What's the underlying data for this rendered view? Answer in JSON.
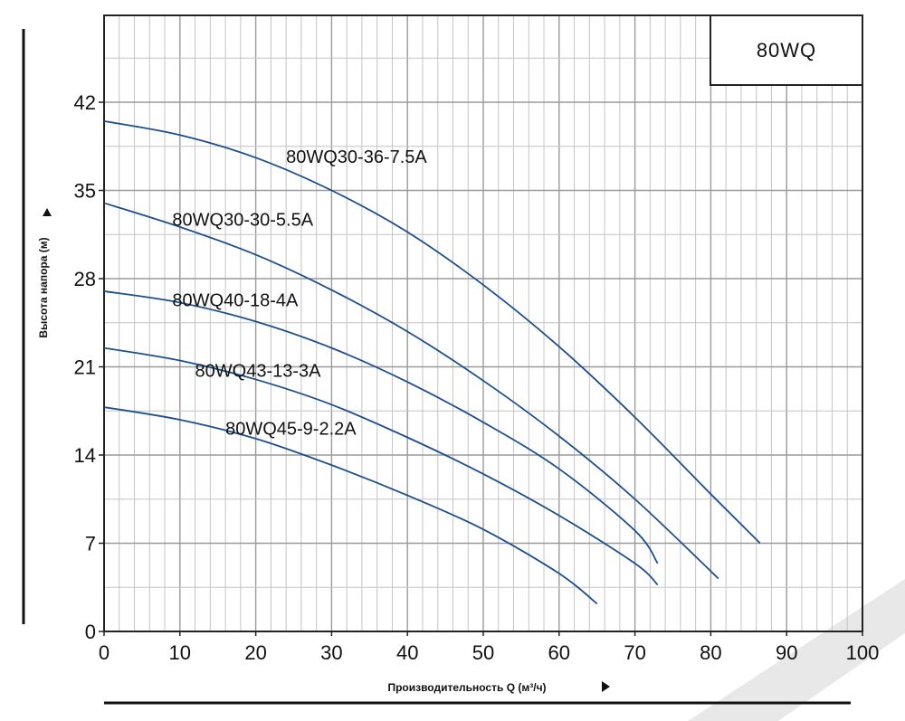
{
  "chart_data": {
    "type": "line",
    "title": "80WQ",
    "xlabel": "Производительность Q (м³/ч)",
    "ylabel": "Высота напора (м)",
    "xlim": [
      0,
      100
    ],
    "ylim": [
      0,
      42
    ],
    "x_ticks": [
      0,
      10,
      20,
      30,
      40,
      50,
      60,
      70,
      80,
      90,
      100
    ],
    "y_ticks": [
      0,
      7,
      14,
      21,
      28,
      35,
      42
    ],
    "grid": true,
    "series": [
      {
        "name": "80WQ30-36-7.5A",
        "color": "#1d4f8c",
        "x": [
          0,
          10,
          20,
          30,
          40,
          50,
          60,
          70,
          80,
          86.5
        ],
        "y": [
          40.5,
          39.4,
          37.6,
          35.0,
          31.7,
          27.5,
          22.6,
          17.0,
          10.9,
          7.0
        ]
      },
      {
        "name": "80WQ30-30-5.5A",
        "color": "#1d4f8c",
        "x": [
          0,
          10,
          20,
          30,
          40,
          50,
          60,
          70,
          81
        ],
        "y": [
          34.0,
          32.1,
          29.9,
          27.1,
          23.8,
          19.9,
          15.5,
          10.5,
          4.2
        ]
      },
      {
        "name": "80WQ40-18-4A",
        "color": "#1d4f8c",
        "x": [
          0,
          10,
          20,
          30,
          40,
          50,
          60,
          70,
          73
        ],
        "y": [
          27.0,
          26.1,
          24.6,
          22.5,
          19.8,
          16.6,
          12.9,
          8.0,
          5.4
        ]
      },
      {
        "name": "80WQ43-13-3A",
        "color": "#1d4f8c",
        "x": [
          0,
          10,
          20,
          30,
          40,
          50,
          60,
          70,
          73
        ],
        "y": [
          22.5,
          21.5,
          20.0,
          18.0,
          15.4,
          12.5,
          9.2,
          5.4,
          3.7
        ]
      },
      {
        "name": "80WQ45-9-2.2A",
        "color": "#1d4f8c",
        "x": [
          0,
          10,
          20,
          30,
          40,
          50,
          60,
          65
        ],
        "y": [
          17.8,
          16.8,
          15.3,
          13.2,
          10.8,
          8.1,
          4.6,
          2.2
        ]
      }
    ]
  }
}
